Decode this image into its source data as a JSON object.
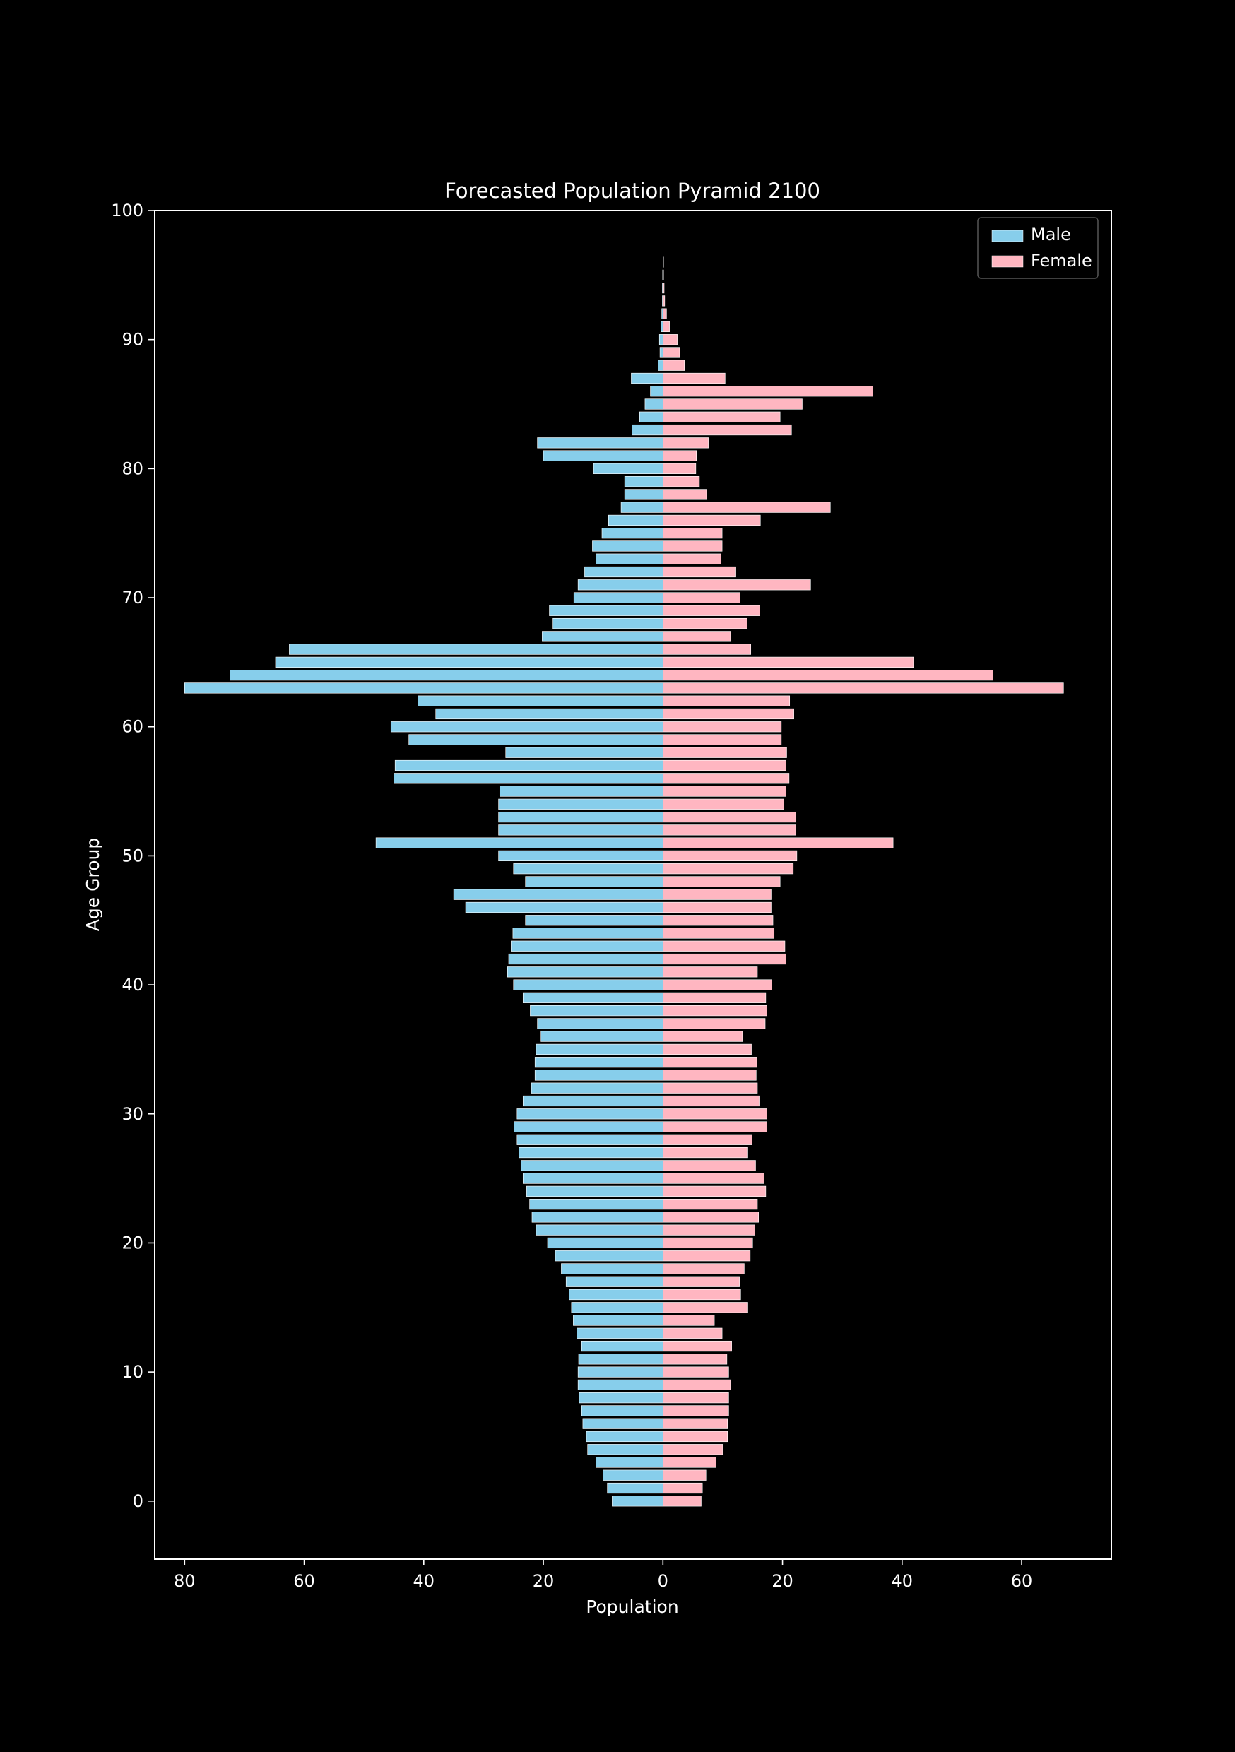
{
  "chart_data": {
    "type": "bar",
    "orientation": "horizontal",
    "subtype": "population-pyramid",
    "title": "Forecasted Population Pyramid 2100",
    "xlabel": "Population",
    "ylabel": "Age Group",
    "xlim": [
      -85,
      75
    ],
    "ylim": [
      -4.5,
      100
    ],
    "x_ticks": [
      -80,
      -60,
      -40,
      -20,
      0,
      20,
      40,
      60
    ],
    "x_tick_labels": [
      "80",
      "60",
      "40",
      "20",
      "0",
      "20",
      "40",
      "60"
    ],
    "y_ticks": [
      0,
      10,
      20,
      30,
      40,
      50,
      60,
      70,
      80,
      90,
      100
    ],
    "y_tick_labels": [
      "0",
      "10",
      "20",
      "30",
      "40",
      "50",
      "60",
      "70",
      "80",
      "90",
      "100"
    ],
    "grid": false,
    "legend_position": "top-right",
    "colors": {
      "background": "#000000",
      "axes": "#ffffff",
      "text": "#ffffff",
      "male": "#87ceeb",
      "female": "#ffb6c1",
      "bar_edge": "#ffffff"
    },
    "ages": [
      0,
      1,
      2,
      3,
      4,
      5,
      6,
      7,
      8,
      9,
      10,
      11,
      12,
      13,
      14,
      15,
      16,
      17,
      18,
      19,
      20,
      21,
      22,
      23,
      24,
      25,
      26,
      27,
      28,
      29,
      30,
      31,
      32,
      33,
      34,
      35,
      36,
      37,
      38,
      39,
      40,
      41,
      42,
      43,
      44,
      45,
      46,
      47,
      48,
      49,
      50,
      51,
      52,
      53,
      54,
      55,
      56,
      57,
      58,
      59,
      60,
      61,
      62,
      63,
      64,
      65,
      66,
      67,
      68,
      69,
      70,
      71,
      72,
      73,
      74,
      75,
      76,
      77,
      78,
      79,
      80,
      81,
      82,
      83,
      84,
      85,
      86,
      87,
      88,
      89,
      90,
      91,
      92,
      93,
      94,
      95,
      96,
      97,
      98,
      99
    ],
    "series": [
      {
        "name": "Male",
        "values": [
          8.5,
          9.3,
          10,
          11.2,
          12.6,
          12.8,
          13.4,
          13.6,
          14,
          14.2,
          14.2,
          14.1,
          13.6,
          14.4,
          15,
          15.3,
          15.7,
          16.2,
          17,
          18,
          19.3,
          21.2,
          21.9,
          22.3,
          22.8,
          23.4,
          23.7,
          24.1,
          24.4,
          24.9,
          24.4,
          23.4,
          22,
          21.4,
          21.4,
          21.2,
          20.4,
          21,
          22.2,
          23.4,
          25,
          26,
          25.8,
          25.4,
          25.1,
          23,
          33,
          35,
          23,
          25,
          27.5,
          48,
          27.5,
          27.5,
          27.5,
          27.3,
          45,
          44.8,
          26.3,
          42.5,
          45.5,
          38,
          41,
          80,
          72.4,
          64.8,
          62.5,
          20.2,
          18.4,
          19,
          14.9,
          14.2,
          13.1,
          11.2,
          11.8,
          10.2,
          9.1,
          7,
          6.4,
          6.4,
          11.6,
          20,
          21,
          5.2,
          3.9,
          3,
          2.1,
          5.3,
          0.8,
          0.5,
          0.6,
          0.3,
          0.2,
          0.1,
          0.1,
          0.05,
          0,
          0,
          0,
          0
        ]
      },
      {
        "name": "Female",
        "values": [
          6.4,
          6.6,
          7.2,
          8.9,
          10,
          10.8,
          10.8,
          11,
          11,
          11.3,
          11,
          10.7,
          11.5,
          9.9,
          8.6,
          14.2,
          13,
          12.8,
          13.6,
          14.6,
          15,
          15.4,
          16,
          15.8,
          17.2,
          16.9,
          15.5,
          14.2,
          14.9,
          17.4,
          17.4,
          16.1,
          15.8,
          15.6,
          15.7,
          14.8,
          13.3,
          17.1,
          17.4,
          17.2,
          18.2,
          15.8,
          20.6,
          20.4,
          18.6,
          18.4,
          18.1,
          18.1,
          19.6,
          21.8,
          22.4,
          38.5,
          22.2,
          22.2,
          20.2,
          20.6,
          21.1,
          20.6,
          20.7,
          19.8,
          19.8,
          21.9,
          21.2,
          67,
          55.2,
          41.9,
          14.7,
          11.3,
          14.1,
          16.2,
          12.9,
          24.7,
          12.2,
          9.7,
          9.9,
          9.9,
          16.3,
          28,
          7.3,
          6.1,
          5.5,
          5.6,
          7.6,
          21.5,
          19.6,
          23.3,
          35.1,
          10.4,
          3.6,
          2.8,
          2.4,
          1.1,
          0.6,
          0.3,
          0.2,
          0.1,
          0.1,
          0,
          0,
          0
        ]
      }
    ]
  }
}
